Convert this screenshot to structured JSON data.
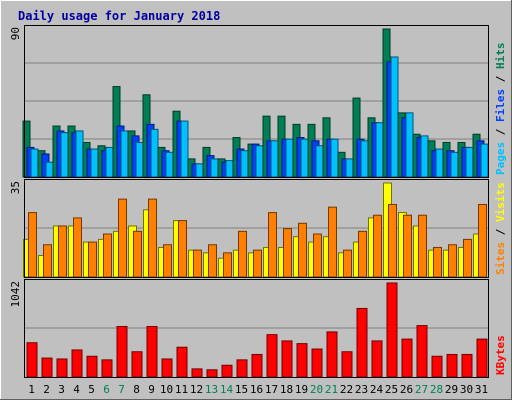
{
  "chart_data": {
    "type": "bar",
    "title": "Daily usage for January 2018",
    "categories": [
      "1",
      "2",
      "3",
      "4",
      "5",
      "6",
      "7",
      "8",
      "9",
      "10",
      "11",
      "12",
      "13",
      "14",
      "15",
      "16",
      "17",
      "18",
      "19",
      "20",
      "21",
      "22",
      "23",
      "24",
      "25",
      "26",
      "27",
      "28",
      "29",
      "30",
      "31"
    ],
    "weekend_days": [
      "6",
      "7",
      "13",
      "14",
      "20",
      "21",
      "27",
      "28"
    ],
    "panels": [
      {
        "id": "top",
        "ymax_label": "90",
        "ylim": [
          0,
          90
        ],
        "legend": [
          "Pages",
          "Files",
          "Hits"
        ],
        "series": [
          {
            "name": "Hits",
            "color": "#007f56",
            "values": [
              34,
              16,
              31,
              31,
              21,
              19,
              55,
              28,
              50,
              18,
              40,
              11,
              18,
              11,
              24,
              20,
              37,
              37,
              32,
              32,
              36,
              15,
              48,
              36,
              90,
              39,
              26,
              22,
              21,
              21,
              26
            ]
          },
          {
            "name": "Files",
            "color": "#0040ff",
            "values": [
              18,
              14,
              28,
              27,
              17,
              16,
              31,
              25,
              32,
              16,
              34,
              8,
              13,
              9,
              17,
              20,
              22,
              23,
              24,
              22,
              23,
              11,
              23,
              33,
              70,
              36,
              24,
              16,
              16,
              18,
              22
            ]
          },
          {
            "name": "Pages",
            "color": "#00c0ff",
            "values": [
              17,
              9,
              27,
              28,
              17,
              18,
              28,
              21,
              29,
              15,
              34,
              8,
              11,
              10,
              16,
              19,
              22,
              23,
              23,
              19,
              23,
              11,
              22,
              33,
              73,
              39,
              25,
              17,
              15,
              18,
              20
            ]
          }
        ]
      },
      {
        "id": "middle",
        "ymax_label": "35",
        "ylim": [
          0,
          35
        ],
        "legend": [
          "Sites",
          "Visits"
        ],
        "series": [
          {
            "name": "Visits",
            "color": "#ffff00",
            "values": [
              14,
              8,
              19,
              19,
              13,
              14,
              17,
              19,
              25,
              11,
              21,
              10,
              9,
              7,
              10,
              9,
              11,
              11,
              15,
              13,
              15,
              9,
              13,
              22,
              35,
              24,
              19,
              10,
              10,
              11,
              16
            ]
          },
          {
            "name": "Sites",
            "color": "#ff8000",
            "values": [
              24,
              12,
              19,
              22,
              13,
              16,
              29,
              17,
              29,
              12,
              21,
              10,
              12,
              9,
              17,
              10,
              24,
              18,
              20,
              16,
              26,
              10,
              17,
              23,
              27,
              23,
              23,
              11,
              12,
              14,
              27
            ]
          }
        ]
      },
      {
        "id": "bottom",
        "ymax_label": "1042",
        "ylim": [
          0,
          1042
        ],
        "legend": [
          "KBytes"
        ],
        "series": [
          {
            "name": "KBytes",
            "color": "#ff0000",
            "values": [
              380,
              210,
              200,
              300,
              230,
              190,
              560,
              280,
              560,
              200,
              330,
              90,
              80,
              130,
              190,
              250,
              470,
              400,
              370,
              310,
              500,
              280,
              760,
              400,
              1042,
              420,
              570,
              230,
              250,
              250,
              420
            ]
          }
        ]
      }
    ]
  }
}
